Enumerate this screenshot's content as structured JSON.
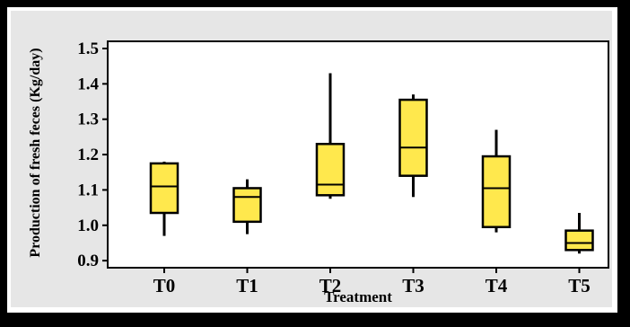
{
  "chart_data": {
    "type": "boxplot",
    "xlabel": "Treatment",
    "ylabel": "Production of fresh  feces  (Kg/day)",
    "ylim": [
      0.88,
      1.5
    ],
    "yticks": [
      "0.9",
      "1.0",
      "1.1",
      "1.2",
      "1.3",
      "1.4",
      "1.5"
    ],
    "ytick_values": [
      0.9,
      1.0,
      1.1,
      1.2,
      1.3,
      1.4,
      1.5
    ],
    "categories": [
      "T0",
      "T1",
      "T2",
      "T3",
      "T4",
      "T5"
    ],
    "boxes": [
      {
        "min": 0.97,
        "q1": 1.035,
        "median": 1.11,
        "q3": 1.175,
        "max": 1.18
      },
      {
        "min": 0.975,
        "q1": 1.01,
        "median": 1.08,
        "q3": 1.105,
        "max": 1.13
      },
      {
        "min": 1.075,
        "q1": 1.085,
        "median": 1.115,
        "q3": 1.23,
        "max": 1.43
      },
      {
        "min": 1.08,
        "q1": 1.14,
        "median": 1.22,
        "q3": 1.355,
        "max": 1.37
      },
      {
        "min": 0.98,
        "q1": 0.995,
        "median": 1.105,
        "q3": 1.195,
        "max": 1.27
      },
      {
        "min": 0.92,
        "q1": 0.93,
        "median": 0.95,
        "q3": 0.985,
        "max": 1.035
      }
    ],
    "box_color": "#ffe84d",
    "grid": false
  }
}
